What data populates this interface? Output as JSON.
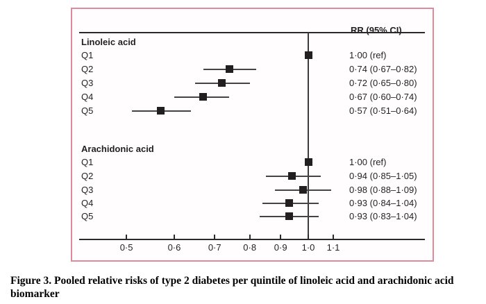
{
  "figure": {
    "column_header": "RR (95% CI)",
    "caption_line1": "Figure 3. Pooled relative risks of type 2 diabetes per quintile of linoleic acid and arachidonic acid",
    "caption_line2": "biomarker"
  },
  "chart_data": {
    "type": "forest",
    "x_scale": "log",
    "x_axis": {
      "tick_values": [
        0.5,
        0.6,
        0.7,
        0.8,
        0.9,
        1.0,
        1.1
      ],
      "tick_labels": [
        "0·5",
        "0·6",
        "0·7",
        "0·8",
        "0·9",
        "1·0",
        "1·1"
      ],
      "reference_line": 1.0
    },
    "value_column_header": "RR (95% CI)",
    "groups": [
      {
        "name": "Linoleic acid",
        "rows": [
          {
            "label": "Q1",
            "rr": 1.0,
            "lo": null,
            "hi": null,
            "text": "1·00 (ref)"
          },
          {
            "label": "Q2",
            "rr": 0.74,
            "lo": 0.67,
            "hi": 0.82,
            "text": "0·74 (0·67–0·82)"
          },
          {
            "label": "Q3",
            "rr": 0.72,
            "lo": 0.65,
            "hi": 0.8,
            "text": "0·72 (0·65–0·80)"
          },
          {
            "label": "Q4",
            "rr": 0.67,
            "lo": 0.6,
            "hi": 0.74,
            "text": "0·67 (0·60–0·74)"
          },
          {
            "label": "Q5",
            "rr": 0.57,
            "lo": 0.51,
            "hi": 0.64,
            "text": "0·57 (0·51–0·64)"
          }
        ]
      },
      {
        "name": "Arachidonic acid",
        "rows": [
          {
            "label": "Q1",
            "rr": 1.0,
            "lo": null,
            "hi": null,
            "text": "1·00 (ref)"
          },
          {
            "label": "Q2",
            "rr": 0.94,
            "lo": 0.85,
            "hi": 1.05,
            "text": "0·94 (0·85–1·05)"
          },
          {
            "label": "Q3",
            "rr": 0.98,
            "lo": 0.88,
            "hi": 1.09,
            "text": "0·98 (0·88–1·09)"
          },
          {
            "label": "Q4",
            "rr": 0.93,
            "lo": 0.84,
            "hi": 1.04,
            "text": "0·93 (0·84–1·04)"
          },
          {
            "label": "Q5",
            "rr": 0.93,
            "lo": 0.83,
            "hi": 1.04,
            "text": "0·93 (0·83–1·04)"
          }
        ]
      }
    ],
    "colors": {
      "frame_border": "#df8a9b",
      "ink": "#231f20",
      "ci_line": "#454444"
    }
  }
}
